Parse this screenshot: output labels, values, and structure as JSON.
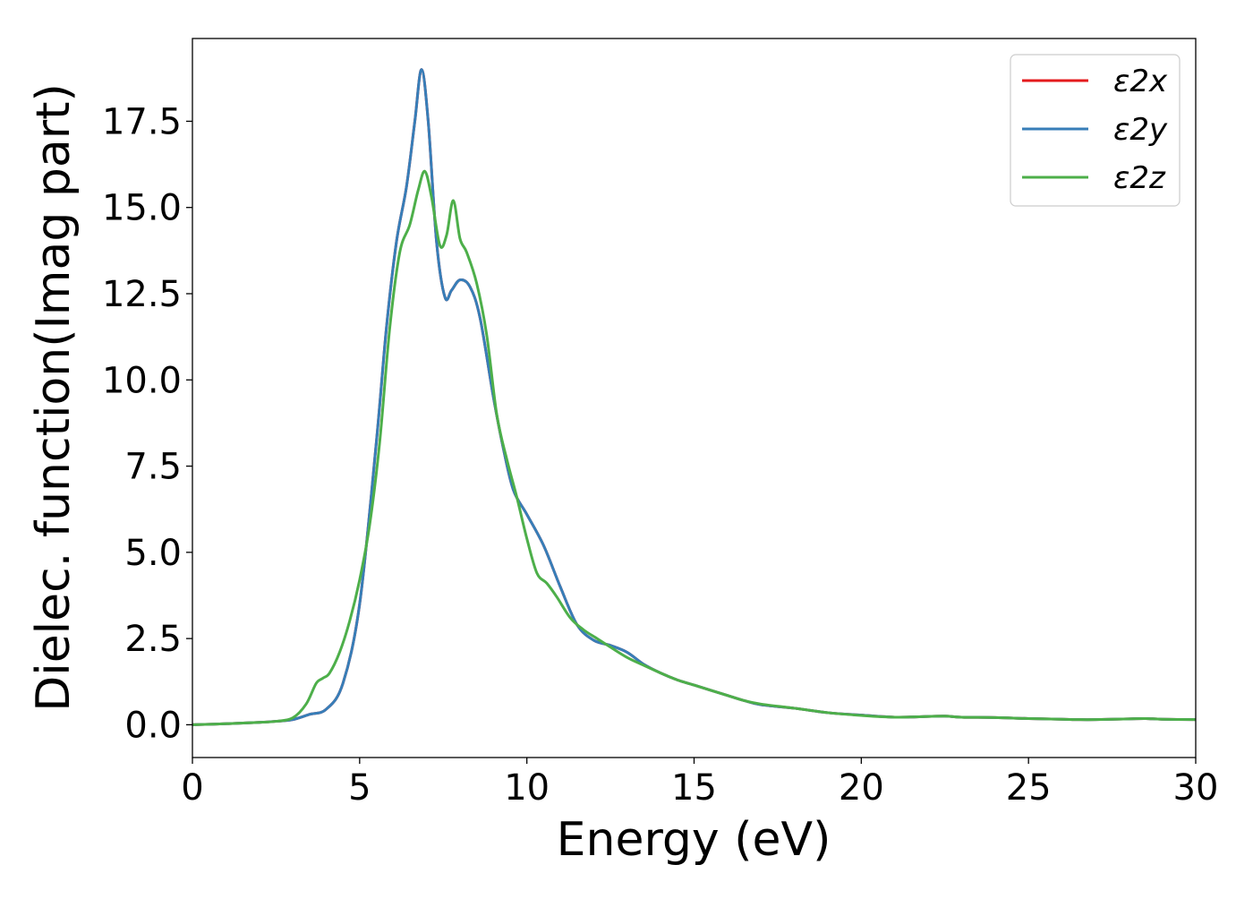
{
  "chart_data": {
    "type": "line",
    "title": "",
    "xlabel": "Energy (eV)",
    "ylabel": "Dielec. function(Imag part)",
    "xlim": [
      0,
      30
    ],
    "ylim": [
      -0.95,
      19.9
    ],
    "xticks": [
      0,
      5,
      10,
      15,
      20,
      25,
      30
    ],
    "xtick_labels": [
      "0",
      "5",
      "10",
      "15",
      "20",
      "25",
      "30"
    ],
    "yticks": [
      0.0,
      2.5,
      5.0,
      7.5,
      10.0,
      12.5,
      15.0,
      17.5
    ],
    "ytick_labels": [
      "0.0",
      "2.5",
      "5.0",
      "7.5",
      "10.0",
      "12.5",
      "15.0",
      "17.5"
    ],
    "grid": false,
    "legend_position": "top-right",
    "series": [
      {
        "name": "ε2x",
        "color": "#e41a1c",
        "x": [
          0,
          1,
          2,
          2.5,
          3,
          3.5,
          4,
          4.5,
          5,
          5.5,
          5.8,
          6.1,
          6.4,
          6.65,
          6.85,
          7.05,
          7.3,
          7.55,
          7.75,
          8.0,
          8.3,
          8.6,
          9.0,
          9.3,
          9.6,
          10.0,
          10.5,
          11.0,
          11.5,
          12.0,
          12.5,
          13.0,
          13.5,
          14.0,
          14.5,
          15.0,
          15.5,
          16.0,
          16.5,
          17.0,
          18.0,
          19.0,
          20.0,
          21.0,
          22.0,
          22.5,
          23.0,
          24.0,
          25.0,
          26.0,
          26.5,
          27.0,
          28.0,
          28.5,
          29.0,
          30.0
        ],
        "y": [
          0.0,
          0.03,
          0.07,
          0.1,
          0.15,
          0.3,
          0.45,
          1.2,
          3.5,
          8.2,
          11.5,
          14.0,
          15.6,
          17.5,
          19.0,
          17.5,
          14.0,
          12.4,
          12.6,
          12.9,
          12.7,
          11.8,
          9.5,
          8.0,
          6.8,
          6.1,
          5.2,
          4.0,
          2.9,
          2.45,
          2.3,
          2.1,
          1.75,
          1.5,
          1.3,
          1.15,
          1.0,
          0.85,
          0.7,
          0.58,
          0.48,
          0.35,
          0.28,
          0.22,
          0.24,
          0.25,
          0.22,
          0.21,
          0.18,
          0.16,
          0.15,
          0.15,
          0.17,
          0.18,
          0.16,
          0.15
        ]
      },
      {
        "name": "ε2y",
        "color": "#377eb8",
        "x": [
          0,
          1,
          2,
          2.5,
          3,
          3.5,
          4,
          4.5,
          5,
          5.5,
          5.8,
          6.1,
          6.4,
          6.65,
          6.85,
          7.05,
          7.3,
          7.55,
          7.75,
          8.0,
          8.3,
          8.6,
          9.0,
          9.3,
          9.6,
          10.0,
          10.5,
          11.0,
          11.5,
          12.0,
          12.5,
          13.0,
          13.5,
          14.0,
          14.5,
          15.0,
          15.5,
          16.0,
          16.5,
          17.0,
          18.0,
          19.0,
          20.0,
          21.0,
          22.0,
          22.5,
          23.0,
          24.0,
          25.0,
          26.0,
          26.5,
          27.0,
          28.0,
          28.5,
          29.0,
          30.0
        ],
        "y": [
          0.0,
          0.03,
          0.07,
          0.1,
          0.15,
          0.3,
          0.45,
          1.2,
          3.5,
          8.2,
          11.5,
          14.0,
          15.6,
          17.5,
          19.0,
          17.5,
          14.0,
          12.4,
          12.6,
          12.9,
          12.7,
          11.8,
          9.5,
          8.0,
          6.8,
          6.1,
          5.2,
          4.0,
          2.9,
          2.45,
          2.3,
          2.1,
          1.75,
          1.5,
          1.3,
          1.15,
          1.0,
          0.85,
          0.7,
          0.58,
          0.48,
          0.35,
          0.28,
          0.22,
          0.24,
          0.25,
          0.22,
          0.21,
          0.18,
          0.16,
          0.15,
          0.15,
          0.17,
          0.18,
          0.16,
          0.15
        ]
      },
      {
        "name": "ε2z",
        "color": "#4daf4a",
        "x": [
          0,
          1,
          2,
          2.5,
          3,
          3.4,
          3.7,
          3.9,
          4.1,
          4.4,
          4.7,
          5.0,
          5.3,
          5.6,
          5.9,
          6.2,
          6.5,
          6.75,
          6.95,
          7.15,
          7.4,
          7.6,
          7.8,
          8.0,
          8.2,
          8.5,
          8.8,
          9.1,
          9.4,
          9.7,
          10.0,
          10.3,
          10.6,
          10.9,
          11.3,
          11.7,
          12.1,
          12.5,
          13.0,
          13.5,
          14.0,
          14.5,
          15.0,
          15.5,
          16.0,
          16.5,
          17.0,
          18.0,
          19.0,
          20.0,
          21.0,
          22.0,
          22.5,
          23.0,
          24.0,
          25.0,
          26.0,
          26.5,
          27.0,
          28.0,
          28.5,
          29.0,
          30.0
        ],
        "y": [
          0.0,
          0.03,
          0.07,
          0.1,
          0.2,
          0.6,
          1.2,
          1.35,
          1.5,
          2.1,
          3.0,
          4.2,
          5.8,
          8.2,
          11.5,
          13.7,
          14.5,
          15.5,
          16.05,
          15.3,
          13.9,
          14.2,
          15.2,
          14.1,
          13.7,
          12.8,
          11.3,
          9.0,
          7.7,
          6.6,
          5.4,
          4.4,
          4.1,
          3.7,
          3.1,
          2.75,
          2.5,
          2.25,
          1.95,
          1.72,
          1.5,
          1.3,
          1.15,
          1.0,
          0.85,
          0.7,
          0.6,
          0.48,
          0.35,
          0.27,
          0.22,
          0.24,
          0.25,
          0.22,
          0.21,
          0.18,
          0.16,
          0.15,
          0.15,
          0.17,
          0.18,
          0.16,
          0.15
        ]
      }
    ]
  }
}
